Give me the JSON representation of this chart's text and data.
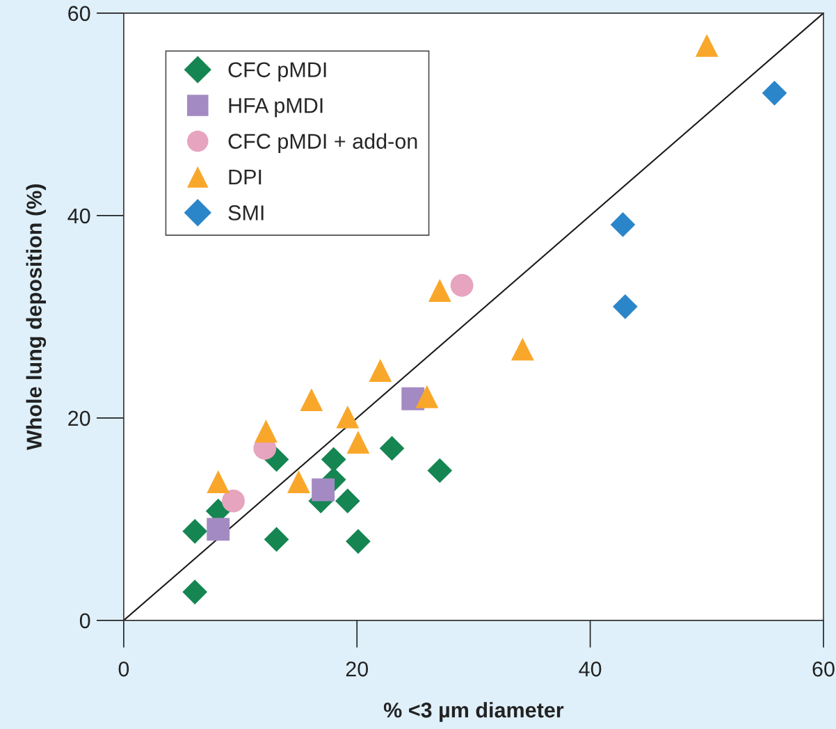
{
  "chart_data": {
    "type": "scatter",
    "xlabel": "% <3 µm diameter",
    "ylabel": "Whole lung deposition (%)",
    "xlim": [
      0,
      60
    ],
    "ylim": [
      0,
      60
    ],
    "xticks": [
      0,
      20,
      40,
      60
    ],
    "yticks": [
      0,
      20,
      40,
      60
    ],
    "grid": false,
    "legend": "top left",
    "series": [
      {
        "name": "CFC pMDI",
        "color": "#158552",
        "marker": "diamond",
        "x": [
          6.1,
          8.1,
          6.1,
          13.1,
          13.1,
          18.0,
          18.0,
          16.9,
          19.2,
          20.1,
          23.0,
          27.1
        ],
        "values": [
          8.8,
          10.8,
          2.8,
          15.9,
          8.0,
          15.9,
          13.9,
          11.8,
          11.8,
          7.8,
          17.0,
          14.8
        ]
      },
      {
        "name": "HFA pMDI",
        "color": "#a48ac2",
        "marker": "square",
        "x": [
          8.1,
          17.1,
          24.8
        ],
        "values": [
          9.0,
          12.9,
          21.9
        ]
      },
      {
        "name": "CFC pMDI + add-on",
        "color": "#e6a4bf",
        "marker": "circle",
        "x": [
          9.4,
          12.1,
          29.0
        ],
        "values": [
          11.8,
          17.0,
          33.1
        ]
      },
      {
        "name": "DPI",
        "color": "#f9a72b",
        "marker": "triangle",
        "x": [
          50.0,
          34.2,
          27.1,
          22.0,
          16.1,
          19.2,
          12.2,
          20.1,
          26.0,
          8.1,
          15.0
        ],
        "values": [
          56.8,
          26.8,
          32.6,
          24.7,
          21.8,
          20.1,
          18.7,
          17.6,
          22.1,
          13.7,
          13.7
        ]
      },
      {
        "name": "SMI",
        "color": "#2b86c9",
        "marker": "diamond",
        "x": [
          55.8,
          42.8,
          43.0
        ],
        "values": [
          52.1,
          39.1,
          31.0
        ]
      },
      {
        "type": "line",
        "color": "#1a1a1a",
        "line_style": "solid",
        "marker": "none",
        "x": [
          0,
          60
        ],
        "values": [
          0,
          60
        ]
      }
    ]
  }
}
